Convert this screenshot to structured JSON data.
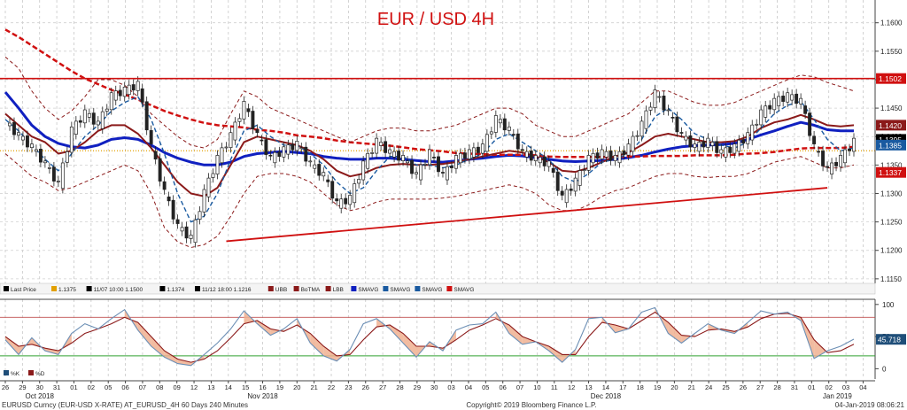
{
  "chart_data": [
    {
      "type": "line",
      "title": "EUR / USD 4H",
      "y_ticks": [
        1.115,
        1.12,
        1.125,
        1.13,
        1.135,
        1.14,
        1.145,
        1.15,
        1.155,
        1.16
      ],
      "y_tick_labels": [
        "1.1150",
        "1.1200",
        "1.1250",
        "1.1300",
        "1.1350",
        "1.1400",
        "1.1450",
        "1.1500",
        "1.1550",
        "1.1600"
      ],
      "ylim": [
        1.1142,
        1.164
      ],
      "legend": {
        "items": [
          {
            "text": "Last Price",
            "color": "#000000"
          },
          {
            "text": "1.1375",
            "color": "#e2a000"
          },
          {
            "text": "11/07 10:00 1.1500",
            "color": "#000000"
          },
          {
            "text": "1.1374",
            "color": "#000000"
          },
          {
            "text": "11/12 18:00 1.1216",
            "color": "#000000"
          },
          {
            "text": "UBB",
            "color": "#8b1a1a"
          },
          {
            "text": "BoTMA",
            "color": "#8b1a1a"
          },
          {
            "text": "LBB",
            "color": "#8b1a1a"
          },
          {
            "text": "SMAVG",
            "color": "#1020c0"
          },
          {
            "text": "SMAVG",
            "color": "#1a5aa0"
          },
          {
            "text": "SMAVG",
            "color": "#1a5aa0"
          },
          {
            "text": "SMAVG",
            "color": "#d01010"
          }
        ]
      },
      "value_tags": [
        {
          "label": "1.1502",
          "value": 1.1502,
          "color": "#d01010"
        },
        {
          "label": "1.1420",
          "value": 1.142,
          "color": "#8b1a1a"
        },
        {
          "label": "1.1395",
          "value": 1.1395,
          "color": "#000000"
        },
        {
          "label": "1.1385",
          "value": 1.1385,
          "color": "#1a5aa0"
        },
        {
          "label": "1.1337",
          "value": 1.1337,
          "color": "#d01010"
        }
      ],
      "resistance_level": 1.1502,
      "support_trendline": [
        [
          12.5,
          1.1216
        ],
        [
          46.5,
          1.131
        ]
      ],
      "dotted_level": 1.1375,
      "series": [
        {
          "key": "price",
          "kind": "candles",
          "color": "#222222",
          "values": [
            1.1425,
            1.14,
            1.138,
            1.135,
            1.1315,
            1.141,
            1.144,
            1.142,
            1.147,
            1.148,
            1.149,
            1.138,
            1.13,
            1.124,
            1.122,
            1.13,
            1.136,
            1.14,
            1.1455,
            1.14,
            1.136,
            1.1375,
            1.1385,
            1.135,
            1.133,
            1.128,
            1.129,
            1.135,
            1.139,
            1.137,
            1.136,
            1.133,
            1.137,
            1.133,
            1.136,
            1.137,
            1.138,
            1.143,
            1.141,
            1.137,
            1.136,
            1.135,
            1.129,
            1.132,
            1.136,
            1.137,
            1.136,
            1.138,
            1.142,
            1.1475,
            1.144,
            1.14,
            1.138,
            1.139,
            1.137,
            1.138,
            1.14,
            1.144,
            1.146,
            1.147,
            1.146,
            1.138,
            1.134,
            1.136,
            1.139
          ]
        },
        {
          "key": "sma_blue",
          "kind": "line",
          "color": "#1020c0",
          "width": 3,
          "dash": "",
          "values": [
            1.1478,
            1.145,
            1.142,
            1.14,
            1.1388,
            1.1382,
            1.138,
            1.1385,
            1.1395,
            1.1398,
            1.1395,
            1.1385,
            1.1372,
            1.1362,
            1.1355,
            1.135,
            1.135,
            1.1355,
            1.1365,
            1.137,
            1.1372,
            1.1374,
            1.1372,
            1.137,
            1.1365,
            1.1362,
            1.136,
            1.136,
            1.1362,
            1.1362,
            1.136,
            1.1358,
            1.1356,
            1.1355,
            1.1357,
            1.136,
            1.1362,
            1.1365,
            1.1367,
            1.1366,
            1.1363,
            1.136,
            1.1357,
            1.1356,
            1.1357,
            1.1358,
            1.136,
            1.1363,
            1.1367,
            1.1373,
            1.1378,
            1.1382,
            1.1384,
            1.1385,
            1.1386,
            1.1388,
            1.1395,
            1.1403,
            1.141,
            1.1418,
            1.1425,
            1.142,
            1.1412,
            1.141,
            1.141
          ]
        },
        {
          "key": "sma_red",
          "kind": "line",
          "color": "#d01010",
          "width": 2.5,
          "dash": "6,3",
          "values": [
            1.1588,
            1.1575,
            1.156,
            1.1545,
            1.153,
            1.1515,
            1.1502,
            1.1492,
            1.1482,
            1.1474,
            1.1465,
            1.1455,
            1.1445,
            1.1437,
            1.143,
            1.1424,
            1.142,
            1.1418,
            1.1416,
            1.1412,
            1.141,
            1.1407,
            1.1402,
            1.14,
            1.1397,
            1.1393,
            1.139,
            1.1388,
            1.1386,
            1.1384,
            1.1381,
            1.1378,
            1.1376,
            1.1374,
            1.1371,
            1.137,
            1.1369,
            1.1368,
            1.1368,
            1.1368,
            1.1367,
            1.1365,
            1.1364,
            1.1364,
            1.1364,
            1.1364,
            1.1364,
            1.1365,
            1.1365,
            1.1366,
            1.1366,
            1.1366,
            1.1367,
            1.1367,
            1.1367,
            1.1368,
            1.137,
            1.1371,
            1.1373,
            1.1376,
            1.1379,
            1.138,
            1.138,
            1.138,
            1.1382
          ]
        },
        {
          "key": "mid_band",
          "kind": "line",
          "color": "#8b1a1a",
          "width": 2,
          "dash": "",
          "values": [
            1.144,
            1.142,
            1.14,
            1.139,
            1.137,
            1.1375,
            1.139,
            1.141,
            1.142,
            1.142,
            1.1405,
            1.138,
            1.135,
            1.132,
            1.13,
            1.1295,
            1.131,
            1.135,
            1.139,
            1.14,
            1.1395,
            1.139,
            1.1385,
            1.1375,
            1.136,
            1.134,
            1.133,
            1.1335,
            1.1345,
            1.135,
            1.1352,
            1.135,
            1.135,
            1.1352,
            1.1355,
            1.136,
            1.1365,
            1.137,
            1.1375,
            1.1372,
            1.1365,
            1.1355,
            1.134,
            1.1338,
            1.1345,
            1.1355,
            1.1365,
            1.1372,
            1.1385,
            1.14,
            1.1405,
            1.14,
            1.1395,
            1.139,
            1.139,
            1.1392,
            1.14,
            1.1415,
            1.1425,
            1.143,
            1.1438,
            1.143,
            1.142,
            1.1418,
            1.142
          ]
        },
        {
          "key": "upper_band",
          "kind": "line",
          "color": "#8b1a1a",
          "width": 1,
          "dash": "4,3",
          "values": [
            1.154,
            1.152,
            1.148,
            1.145,
            1.143,
            1.1445,
            1.147,
            1.15,
            1.15,
            1.149,
            1.147,
            1.144,
            1.142,
            1.14,
            1.1385,
            1.138,
            1.1395,
            1.144,
            1.148,
            1.147,
            1.145,
            1.144,
            1.143,
            1.142,
            1.141,
            1.14,
            1.139,
            1.14,
            1.141,
            1.1415,
            1.1415,
            1.141,
            1.141,
            1.1415,
            1.142,
            1.143,
            1.144,
            1.145,
            1.145,
            1.144,
            1.142,
            1.141,
            1.14,
            1.14,
            1.141,
            1.142,
            1.143,
            1.144,
            1.146,
            1.148,
            1.148,
            1.147,
            1.146,
            1.1455,
            1.1455,
            1.146,
            1.147,
            1.148,
            1.149,
            1.15,
            1.1508,
            1.1505,
            1.1495,
            1.1488,
            1.148
          ]
        },
        {
          "key": "lower_band",
          "kind": "line",
          "color": "#8b1a1a",
          "width": 1,
          "dash": "4,3",
          "values": [
            1.137,
            1.135,
            1.133,
            1.132,
            1.1305,
            1.131,
            1.132,
            1.133,
            1.134,
            1.135,
            1.134,
            1.13,
            1.124,
            1.1215,
            1.1205,
            1.121,
            1.1225,
            1.126,
            1.13,
            1.133,
            1.1335,
            1.1335,
            1.133,
            1.132,
            1.13,
            1.128,
            1.127,
            1.1275,
            1.1285,
            1.129,
            1.129,
            1.129,
            1.129,
            1.1292,
            1.1295,
            1.13,
            1.1305,
            1.131,
            1.1315,
            1.131,
            1.13,
            1.128,
            1.127,
            1.127,
            1.128,
            1.1295,
            1.1305,
            1.131,
            1.132,
            1.133,
            1.1335,
            1.1335,
            1.133,
            1.1328,
            1.133,
            1.133,
            1.1335,
            1.1345,
            1.1355,
            1.136,
            1.1365,
            1.1355,
            1.1345,
            1.1345,
            1.135
          ]
        },
        {
          "key": "sma_fast",
          "kind": "line",
          "color": "#1a5aa0",
          "width": 1.4,
          "dash": "5,3",
          "values": [
            1.143,
            1.141,
            1.1385,
            1.136,
            1.134,
            1.137,
            1.14,
            1.142,
            1.1445,
            1.146,
            1.147,
            1.143,
            1.137,
            1.13,
            1.125,
            1.126,
            1.13,
            1.136,
            1.141,
            1.142,
            1.14,
            1.1385,
            1.1385,
            1.137,
            1.135,
            1.132,
            1.13,
            1.131,
            1.134,
            1.1365,
            1.1365,
            1.135,
            1.135,
            1.1345,
            1.135,
            1.136,
            1.137,
            1.1395,
            1.1405,
            1.139,
            1.1375,
            1.136,
            1.133,
            1.132,
            1.1335,
            1.1355,
            1.136,
            1.137,
            1.1395,
            1.1435,
            1.145,
            1.143,
            1.1405,
            1.1395,
            1.1385,
            1.138,
            1.139,
            1.1415,
            1.144,
            1.1455,
            1.1462,
            1.143,
            1.1395,
            1.1375,
            1.138
          ]
        }
      ]
    },
    {
      "type": "line",
      "y_ticks": [
        0,
        50,
        100
      ],
      "y_tick_labels": [
        "0",
        "50",
        "100"
      ],
      "ylim": [
        -16,
        108
      ],
      "upper_level": 80,
      "lower_level": 20,
      "value_tag": {
        "label": "45.718",
        "value": 45.718,
        "color": "#1f4e79"
      },
      "legend": [
        {
          "text": "%K",
          "color": "#1f4e79"
        },
        {
          "text": "%D",
          "color": "#8b1a1a"
        }
      ],
      "series": [
        {
          "name": "%K",
          "color": "#6c8fb5",
          "values": [
            45,
            22,
            48,
            28,
            22,
            55,
            70,
            62,
            78,
            92,
            60,
            35,
            18,
            8,
            5,
            22,
            40,
            62,
            90,
            70,
            52,
            62,
            78,
            40,
            20,
            12,
            30,
            70,
            78,
            62,
            40,
            18,
            42,
            28,
            60,
            68,
            70,
            88,
            55,
            38,
            42,
            28,
            10,
            30,
            78,
            80,
            56,
            62,
            88,
            95,
            55,
            40,
            55,
            70,
            60,
            55,
            72,
            90,
            85,
            88,
            75,
            16,
            28,
            35,
            46
          ]
        },
        {
          "name": "%D",
          "color": "#8b1a1a",
          "values": [
            50,
            35,
            38,
            32,
            28,
            40,
            55,
            62,
            70,
            80,
            72,
            50,
            28,
            15,
            10,
            15,
            28,
            48,
            70,
            75,
            62,
            58,
            68,
            55,
            35,
            20,
            22,
            45,
            65,
            68,
            55,
            35,
            35,
            32,
            45,
            60,
            68,
            78,
            68,
            50,
            42,
            35,
            22,
            22,
            50,
            72,
            68,
            62,
            75,
            88,
            72,
            52,
            50,
            60,
            62,
            58,
            65,
            78,
            85,
            86,
            80,
            45,
            25,
            28,
            38
          ]
        }
      ]
    },
    {
      "type": "table",
      "x_tick_labels": [
        "26",
        "29",
        "30",
        "31",
        "01",
        "02",
        "05",
        "06",
        "07",
        "08",
        "09",
        "12",
        "13",
        "14",
        "15",
        "16",
        "19",
        "20",
        "21",
        "22",
        "23",
        "26",
        "27",
        "28",
        "29",
        "30",
        "03",
        "04",
        "05",
        "06",
        "07",
        "10",
        "11",
        "12",
        "13",
        "14",
        "17",
        "18",
        "19",
        "20",
        "21",
        "24",
        "25",
        "26",
        "27",
        "28",
        "31",
        "01",
        "02",
        "03",
        "04"
      ],
      "x_tick_positions": [
        0,
        1,
        2,
        3,
        4,
        5,
        6,
        7,
        8,
        9,
        10,
        11,
        12,
        13,
        14,
        15,
        16,
        17,
        18,
        19,
        20,
        21,
        22,
        23,
        24,
        25,
        26,
        27,
        28,
        29,
        30,
        31,
        32,
        33,
        34,
        35,
        36,
        37,
        38,
        39,
        40,
        41,
        42,
        43,
        44,
        45,
        46,
        47,
        48,
        49,
        50
      ],
      "month_labels": [
        "Oct 2018",
        "Nov 2018",
        "Dec 2018",
        "Jan 2019"
      ],
      "month_positions": [
        2,
        15,
        35,
        48.5
      ],
      "footer_left": "EURUSD Curncy (EUR-USD X-RATE) AT_EURUSD_4H 60 Days 240 Minutes",
      "footer_center": "Copyright© 2019 Bloomberg Finance L.P.",
      "footer_right": "04-Jan-2019 08:06:21"
    }
  ]
}
